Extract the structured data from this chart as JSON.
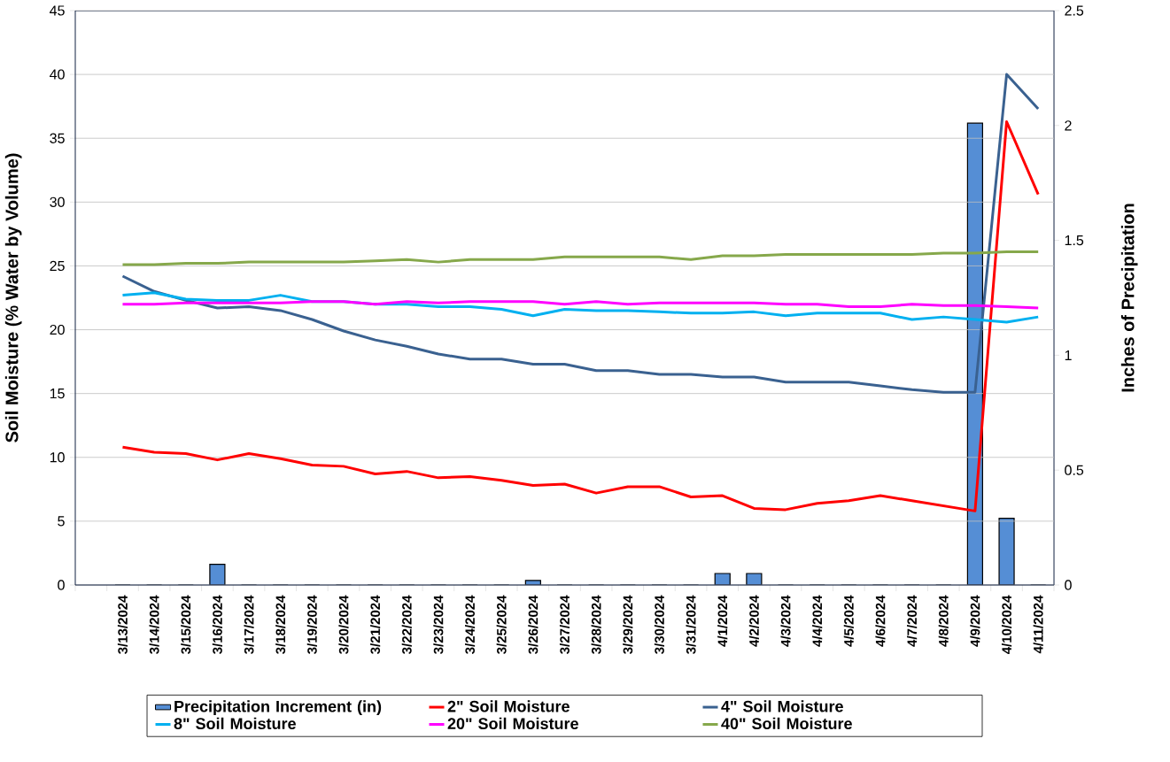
{
  "chart_data": {
    "type": "line",
    "categories": [
      null,
      "3/13/2024",
      "3/14/2024",
      "3/15/2024",
      "3/16/2024",
      "3/17/2024",
      "3/18/2024",
      "3/19/2024",
      "3/20/2024",
      "3/21/2024",
      "3/22/2024",
      "3/23/2024",
      "3/24/2024",
      "3/25/2024",
      "3/26/2024",
      "3/27/2024",
      "3/28/2024",
      "3/29/2024",
      "3/30/2024",
      "3/31/2024",
      "4/1/2024",
      "4/2/2024",
      "4/3/2024",
      "4/4/2024",
      "4/5/2024",
      "4/6/2024",
      "4/7/2024",
      "4/8/2024",
      "4/9/2024",
      "4/10/2024",
      "4/11/2024"
    ],
    "ylabel": "Soil Moisture (% Water by Volume)",
    "y2label": "Inches of Precipitation",
    "ylim": [
      0,
      45
    ],
    "yticks": [
      0,
      5,
      10,
      15,
      20,
      25,
      30,
      35,
      40,
      45
    ],
    "y2lim": [
      0,
      2.5
    ],
    "y2ticks": [
      0,
      0.5,
      1,
      1.5,
      2,
      2.5
    ],
    "grid": "y",
    "legend": "bottom",
    "marker": "none",
    "line_style": "solid",
    "series": [
      {
        "name": "Precipitation Increment (in)",
        "type": "bar",
        "axis": "y2",
        "color": "#558ed5",
        "values": [
          null,
          0,
          0,
          0,
          0.09,
          0,
          0,
          0,
          0,
          0,
          0,
          0,
          0,
          0,
          0.02,
          0,
          0,
          0,
          0,
          0,
          0.05,
          0.05,
          0,
          0,
          0,
          0,
          0,
          0,
          2.01,
          0.29,
          0
        ]
      },
      {
        "name": "2\" Soil Moisture",
        "color": "#ff0000",
        "values": [
          null,
          10.8,
          10.4,
          10.3,
          9.8,
          10.3,
          9.9,
          9.4,
          9.3,
          8.7,
          8.9,
          8.4,
          8.5,
          8.2,
          7.8,
          7.9,
          7.2,
          7.7,
          7.7,
          6.9,
          7.0,
          6.0,
          5.9,
          6.4,
          6.6,
          7.0,
          6.6,
          6.2,
          5.8,
          36.3,
          30.6
        ]
      },
      {
        "name": "4\" Soil Moisture",
        "color": "#3a6190",
        "values": [
          null,
          24.2,
          23.0,
          22.3,
          21.7,
          21.8,
          21.5,
          20.8,
          19.9,
          19.2,
          18.7,
          18.1,
          17.7,
          17.7,
          17.3,
          17.3,
          16.8,
          16.8,
          16.5,
          16.5,
          16.3,
          16.3,
          15.9,
          15.9,
          15.9,
          15.6,
          15.3,
          15.1,
          15.1,
          40.0,
          37.3
        ]
      },
      {
        "name": "8\" Soil Moisture",
        "color": "#00b0f0",
        "values": [
          null,
          22.7,
          22.9,
          22.4,
          22.3,
          22.3,
          22.7,
          22.2,
          22.2,
          22.0,
          22.0,
          21.8,
          21.8,
          21.6,
          21.1,
          21.6,
          21.5,
          21.5,
          21.4,
          21.3,
          21.3,
          21.4,
          21.1,
          21.3,
          21.3,
          21.3,
          20.8,
          21.0,
          20.8,
          20.6,
          21.0
        ]
      },
      {
        "name": "20\" Soil Moisture",
        "color": "#ff00ff",
        "values": [
          null,
          22.0,
          22.0,
          22.1,
          22.1,
          22.1,
          22.1,
          22.2,
          22.2,
          22.0,
          22.2,
          22.1,
          22.2,
          22.2,
          22.2,
          22.0,
          22.2,
          22.0,
          22.1,
          22.1,
          22.1,
          22.1,
          22.0,
          22.0,
          21.8,
          21.8,
          22.0,
          21.9,
          21.9,
          21.8,
          21.7
        ]
      },
      {
        "name": "40\" Soil Moisture",
        "color": "#86a84b",
        "values": [
          null,
          25.1,
          25.1,
          25.2,
          25.2,
          25.3,
          25.3,
          25.3,
          25.3,
          25.4,
          25.5,
          25.3,
          25.5,
          25.5,
          25.5,
          25.7,
          25.7,
          25.7,
          25.7,
          25.5,
          25.8,
          25.8,
          25.9,
          25.9,
          25.9,
          25.9,
          25.9,
          26.0,
          26.0,
          26.1,
          26.1
        ]
      }
    ]
  }
}
